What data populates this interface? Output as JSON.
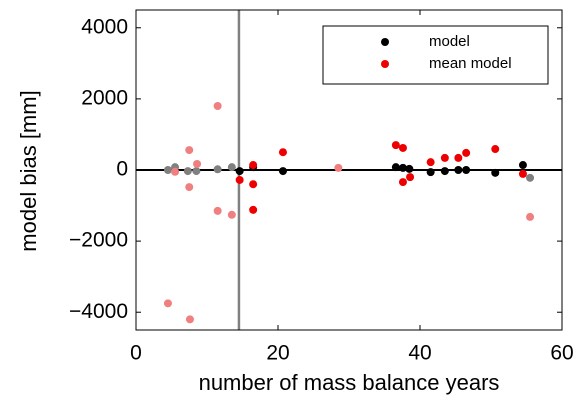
{
  "chart_data": {
    "type": "scatter",
    "xlabel": "number of mass balance years",
    "ylabel": "model bias [mm]",
    "xlim": [
      0,
      60
    ],
    "ylim": [
      -4500,
      4500
    ],
    "xticks": [
      0,
      20,
      40,
      60
    ],
    "yticks": [
      {
        "value": -4000,
        "label": "−4000"
      },
      {
        "value": -2000,
        "label": "−2000"
      },
      0,
      2000,
      4000
    ],
    "vline": 14.5,
    "vline_color": "#808080",
    "hline": 0,
    "hline_color": "#000000",
    "legend": "upper right",
    "series": [
      {
        "name": "model",
        "color": "#000000",
        "x": [
          14.6,
          16.5,
          20.7,
          36.6,
          37.6,
          38.5,
          41.5,
          43.5,
          45.4,
          46.5,
          50.6,
          54.5
        ],
        "values": [
          -30,
          80,
          -30,
          80,
          60,
          30,
          -60,
          -30,
          0,
          0,
          -80,
          140
        ]
      },
      {
        "name": "mean model",
        "color": "#ee0000",
        "x": [
          14.6,
          16.5,
          16.5,
          16.5,
          20.7,
          36.6,
          37.6,
          37.6,
          38.6,
          41.5,
          43.5,
          45.4,
          46.5,
          50.6,
          54.5
        ],
        "values": [
          -280,
          140,
          -400,
          -1120,
          500,
          700,
          620,
          -340,
          -200,
          220,
          340,
          340,
          480,
          590,
          -110
        ]
      },
      {
        "color": "#808080",
        "x": [
          4.5,
          5.5,
          7.3,
          8.5,
          11.5,
          13.5,
          55.5
        ],
        "values": [
          0,
          80,
          -30,
          -30,
          20,
          80,
          -220
        ]
      },
      {
        "color": "#f08080",
        "x": [
          4.5,
          5.5,
          7.5,
          7.5,
          8.6,
          7.6,
          11.5,
          11.5,
          13.5,
          28.5,
          55.5
        ],
        "values": [
          -3750,
          -50,
          560,
          -480,
          170,
          -4200,
          1800,
          -1150,
          -1260,
          60,
          -1320
        ]
      }
    ]
  }
}
